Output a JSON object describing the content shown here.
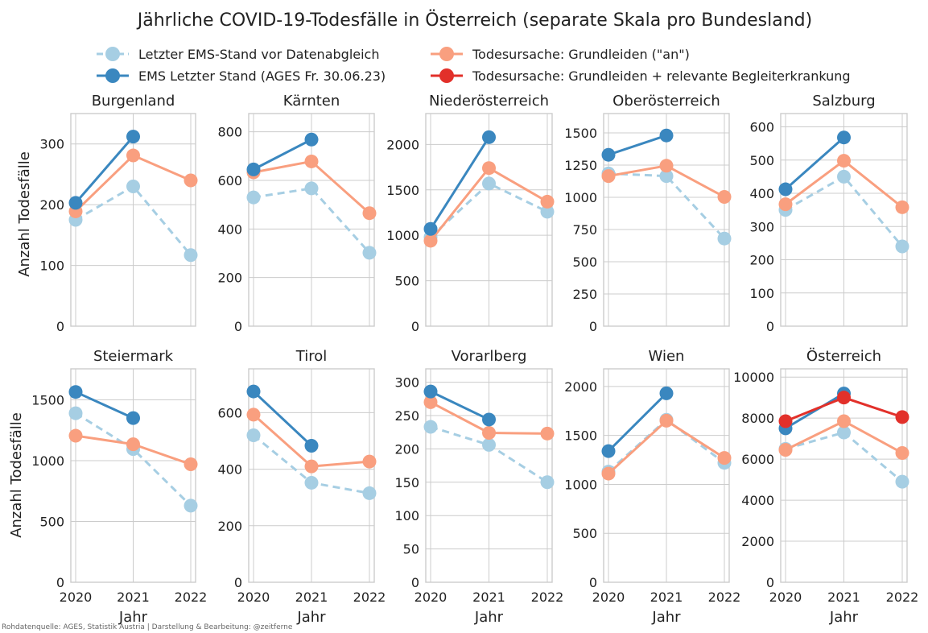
{
  "chart_data": {
    "type": "line",
    "title": "Jährliche COVID-19-Todesfälle in Österreich (separate Skala pro Bundesland)",
    "source": "Rohdatenquelle: AGES, Statistik Austria | Darstellung & Bearbeitung: @zeitferne",
    "xlabel": "Jahr",
    "ylabel": "Anzahl Todesfälle",
    "x": [
      "2020",
      "2021",
      "2022"
    ],
    "legend": [
      {
        "key": "ems_prev",
        "label": "Letzter EMS-Stand vor Datenabgleich",
        "color": "#a6cee3",
        "dashed": true
      },
      {
        "key": "ems_last",
        "label": "EMS Letzter Stand (AGES Fr. 30.06.23)",
        "color": "#3a87bf",
        "dashed": false
      },
      {
        "key": "grund",
        "label": "Todesursache: Grundleiden (\"an\")",
        "color": "#f99f7f",
        "dashed": false
      },
      {
        "key": "grund_plus",
        "label": "Todesursache: Grundleiden + relevante Begleiterkrankung",
        "color": "#e2302a",
        "dashed": false
      }
    ],
    "panels": [
      {
        "title": "Burgenland",
        "ylim": [
          0,
          350
        ],
        "yticks": [
          0,
          100,
          200,
          300
        ],
        "ytick_labels": [
          "0",
          "100",
          "200",
          "300"
        ],
        "series": {
          "ems_prev": [
            175,
            230,
            117
          ],
          "ems_last": [
            203,
            312,
            null
          ],
          "grund": [
            189,
            281,
            240
          ]
        }
      },
      {
        "title": "Kärnten",
        "ylim": [
          0,
          875
        ],
        "yticks": [
          0,
          200,
          400,
          600,
          800
        ],
        "ytick_labels": [
          "0",
          "200",
          "400",
          "600",
          "800"
        ],
        "series": {
          "ems_prev": [
            530,
            567,
            302
          ],
          "ems_last": [
            645,
            768,
            null
          ],
          "grund": [
            633,
            678,
            465
          ]
        }
      },
      {
        "title": "Niederösterreich",
        "ylim": [
          0,
          2340
        ],
        "yticks": [
          0,
          500,
          1000,
          1500,
          2000
        ],
        "ytick_labels": [
          "0",
          "500",
          "1000",
          "1500",
          "2000"
        ],
        "series": {
          "ems_prev": [
            980,
            1570,
            1260
          ],
          "ems_last": [
            1070,
            2080,
            null
          ],
          "grund": [
            940,
            1740,
            1370
          ]
        }
      },
      {
        "title": "Oberösterreich",
        "ylim": [
          0,
          1650
        ],
        "yticks": [
          0,
          250,
          500,
          750,
          1000,
          1250,
          1500
        ],
        "ytick_labels": [
          "0",
          "250",
          "500",
          "750",
          "1000",
          "1250",
          "1500"
        ],
        "series": {
          "ems_prev": [
            1185,
            1165,
            680
          ],
          "ems_last": [
            1330,
            1480,
            null
          ],
          "grund": [
            1165,
            1245,
            1003
          ]
        }
      },
      {
        "title": "Salzburg",
        "ylim": [
          0,
          640
        ],
        "yticks": [
          0,
          100,
          200,
          300,
          400,
          500,
          600
        ],
        "ytick_labels": [
          "0",
          "100",
          "200",
          "300",
          "400",
          "500",
          "600"
        ],
        "series": {
          "ems_prev": [
            350,
            450,
            240
          ],
          "ems_last": [
            412,
            568,
            null
          ],
          "grund": [
            367,
            498,
            358
          ]
        }
      },
      {
        "title": "Steiermark",
        "ylim": [
          0,
          1755
        ],
        "yticks": [
          0,
          500,
          1000,
          1500
        ],
        "ytick_labels": [
          "0",
          "500",
          "1000",
          "1500"
        ],
        "series": {
          "ems_prev": [
            1390,
            1095,
            630
          ],
          "ems_last": [
            1565,
            1350,
            null
          ],
          "grund": [
            1205,
            1135,
            970
          ]
        }
      },
      {
        "title": "Tirol",
        "ylim": [
          0,
          755
        ],
        "yticks": [
          0,
          200,
          400,
          600
        ],
        "ytick_labels": [
          "0",
          "200",
          "400",
          "600"
        ],
        "series": {
          "ems_prev": [
            520,
            352,
            315
          ],
          "ems_last": [
            675,
            483,
            null
          ],
          "grund": [
            593,
            410,
            427
          ]
        }
      },
      {
        "title": "Vorarlberg",
        "ylim": [
          0,
          320
        ],
        "yticks": [
          0,
          50,
          100,
          150,
          200,
          250,
          300
        ],
        "ytick_labels": [
          "0",
          "50",
          "100",
          "150",
          "200",
          "250",
          "300"
        ],
        "series": {
          "ems_prev": [
            233,
            206,
            150
          ],
          "ems_last": [
            286,
            244,
            null
          ],
          "grund": [
            270,
            224,
            223
          ]
        }
      },
      {
        "title": "Wien",
        "ylim": [
          0,
          2180
        ],
        "yticks": [
          0,
          500,
          1000,
          1500,
          2000
        ],
        "ytick_labels": [
          "0",
          "500",
          "1000",
          "1500",
          "2000"
        ],
        "series": {
          "ems_prev": [
            1130,
            1660,
            1220
          ],
          "ems_last": [
            1340,
            1930,
            null
          ],
          "grund": [
            1110,
            1650,
            1270
          ]
        }
      },
      {
        "title": "Österreich",
        "ylim": [
          0,
          10400
        ],
        "yticks": [
          0,
          2000,
          4000,
          6000,
          8000,
          10000
        ],
        "ytick_labels": [
          "0",
          "2000",
          "4000",
          "6000",
          "8000",
          "10000"
        ],
        "series": {
          "ems_prev": [
            6500,
            7300,
            4900
          ],
          "ems_last": [
            7500,
            9200,
            null
          ],
          "grund": [
            6450,
            7850,
            6300
          ],
          "grund_plus": [
            7850,
            9000,
            8050
          ]
        }
      }
    ]
  }
}
